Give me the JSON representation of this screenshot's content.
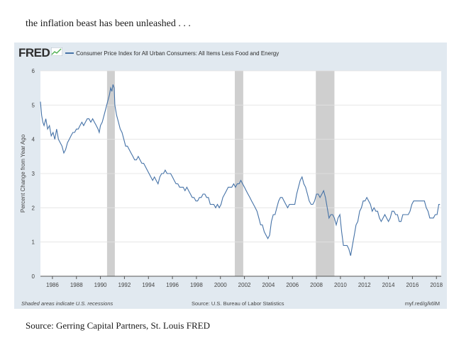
{
  "intro_text": "the inflation beast has been unleashed . . .",
  "source_text": "Source: Gerring Capital Partners, St. Louis FRED",
  "fred": {
    "logo": "FRED",
    "series_title": "Consumer Price Index for All Urban Consumers: All Items Less Food and Energy",
    "footer_left": "Shaded areas indicate U.S. recessions",
    "footer_mid": "Source: U.S. Bureau of Labor Statistics",
    "footer_right": "myf.red/g/k6lM"
  },
  "colors": {
    "line": "#4572a7",
    "recession": "#cfcfcf",
    "plot_bg": "#ffffff",
    "panel_bg": "#e1e9f0"
  },
  "chart_data": {
    "type": "line",
    "title": "Consumer Price Index for All Urban Consumers: All Items Less Food and Energy",
    "xlabel": "",
    "ylabel": "Percent Change from Year Ago",
    "xlim": [
      1985,
      2018.4
    ],
    "ylim": [
      0,
      6
    ],
    "yticks": [
      0,
      1,
      2,
      3,
      4,
      5,
      6
    ],
    "xticks": [
      "1986",
      "1988",
      "1990",
      "1992",
      "1994",
      "1996",
      "1998",
      "2000",
      "2002",
      "2004",
      "2006",
      "2008",
      "2010",
      "2012",
      "2014",
      "2016",
      "2018"
    ],
    "grid": "horizontal",
    "recessions": [
      [
        1990.55,
        1991.2
      ],
      [
        2001.2,
        2001.9
      ],
      [
        2007.95,
        2009.5
      ]
    ],
    "series": [
      {
        "values": [
          [
            1985.0,
            5.1
          ],
          [
            1985.1,
            4.7
          ],
          [
            1985.2,
            4.5
          ],
          [
            1985.3,
            4.4
          ],
          [
            1985.45,
            4.6
          ],
          [
            1985.6,
            4.3
          ],
          [
            1985.75,
            4.4
          ],
          [
            1985.9,
            4.1
          ],
          [
            1986.05,
            4.2
          ],
          [
            1986.2,
            4.0
          ],
          [
            1986.35,
            4.3
          ],
          [
            1986.5,
            4.0
          ],
          [
            1986.65,
            3.9
          ],
          [
            1986.8,
            3.8
          ],
          [
            1986.95,
            3.6
          ],
          [
            1987.1,
            3.7
          ],
          [
            1987.25,
            3.9
          ],
          [
            1987.4,
            4.0
          ],
          [
            1987.55,
            4.1
          ],
          [
            1987.7,
            4.2
          ],
          [
            1987.85,
            4.2
          ],
          [
            1988.0,
            4.3
          ],
          [
            1988.15,
            4.3
          ],
          [
            1988.3,
            4.4
          ],
          [
            1988.45,
            4.5
          ],
          [
            1988.6,
            4.4
          ],
          [
            1988.75,
            4.5
          ],
          [
            1988.9,
            4.6
          ],
          [
            1989.05,
            4.6
          ],
          [
            1989.2,
            4.5
          ],
          [
            1989.35,
            4.6
          ],
          [
            1989.5,
            4.5
          ],
          [
            1989.65,
            4.4
          ],
          [
            1989.8,
            4.3
          ],
          [
            1989.9,
            4.2
          ],
          [
            1990.0,
            4.4
          ],
          [
            1990.15,
            4.5
          ],
          [
            1990.3,
            4.7
          ],
          [
            1990.45,
            4.9
          ],
          [
            1990.6,
            5.1
          ],
          [
            1990.75,
            5.3
          ],
          [
            1990.85,
            5.5
          ],
          [
            1990.95,
            5.4
          ],
          [
            1991.05,
            5.6
          ],
          [
            1991.15,
            5.5
          ],
          [
            1991.2,
            5.0
          ],
          [
            1991.35,
            4.7
          ],
          [
            1991.5,
            4.5
          ],
          [
            1991.65,
            4.3
          ],
          [
            1991.8,
            4.2
          ],
          [
            1991.95,
            4.0
          ],
          [
            1992.1,
            3.8
          ],
          [
            1992.25,
            3.8
          ],
          [
            1992.4,
            3.7
          ],
          [
            1992.55,
            3.6
          ],
          [
            1992.7,
            3.5
          ],
          [
            1992.85,
            3.4
          ],
          [
            1993.0,
            3.4
          ],
          [
            1993.15,
            3.5
          ],
          [
            1993.3,
            3.4
          ],
          [
            1993.45,
            3.3
          ],
          [
            1993.6,
            3.3
          ],
          [
            1993.75,
            3.2
          ],
          [
            1993.9,
            3.1
          ],
          [
            1994.05,
            3.0
          ],
          [
            1994.2,
            2.9
          ],
          [
            1994.35,
            2.8
          ],
          [
            1994.5,
            2.9
          ],
          [
            1994.65,
            2.8
          ],
          [
            1994.8,
            2.7
          ],
          [
            1994.95,
            2.9
          ],
          [
            1995.1,
            3.0
          ],
          [
            1995.25,
            3.0
          ],
          [
            1995.4,
            3.1
          ],
          [
            1995.55,
            3.0
          ],
          [
            1995.7,
            3.0
          ],
          [
            1995.85,
            3.0
          ],
          [
            1996.0,
            2.9
          ],
          [
            1996.15,
            2.8
          ],
          [
            1996.3,
            2.7
          ],
          [
            1996.45,
            2.7
          ],
          [
            1996.6,
            2.6
          ],
          [
            1996.75,
            2.6
          ],
          [
            1996.9,
            2.6
          ],
          [
            1997.05,
            2.5
          ],
          [
            1997.2,
            2.6
          ],
          [
            1997.35,
            2.5
          ],
          [
            1997.5,
            2.4
          ],
          [
            1997.65,
            2.3
          ],
          [
            1997.8,
            2.3
          ],
          [
            1997.95,
            2.2
          ],
          [
            1998.1,
            2.2
          ],
          [
            1998.25,
            2.3
          ],
          [
            1998.4,
            2.3
          ],
          [
            1998.55,
            2.4
          ],
          [
            1998.7,
            2.4
          ],
          [
            1998.85,
            2.3
          ],
          [
            1999.0,
            2.3
          ],
          [
            1999.15,
            2.1
          ],
          [
            1999.3,
            2.1
          ],
          [
            1999.45,
            2.1
          ],
          [
            1999.6,
            2.0
          ],
          [
            1999.75,
            2.1
          ],
          [
            1999.9,
            2.0
          ],
          [
            2000.05,
            2.1
          ],
          [
            2000.2,
            2.3
          ],
          [
            2000.35,
            2.4
          ],
          [
            2000.5,
            2.5
          ],
          [
            2000.65,
            2.6
          ],
          [
            2000.8,
            2.6
          ],
          [
            2000.95,
            2.6
          ],
          [
            2001.1,
            2.7
          ],
          [
            2001.25,
            2.6
          ],
          [
            2001.4,
            2.7
          ],
          [
            2001.55,
            2.7
          ],
          [
            2001.7,
            2.8
          ],
          [
            2001.85,
            2.7
          ],
          [
            2002.0,
            2.6
          ],
          [
            2002.15,
            2.5
          ],
          [
            2002.3,
            2.4
          ],
          [
            2002.45,
            2.3
          ],
          [
            2002.6,
            2.2
          ],
          [
            2002.75,
            2.1
          ],
          [
            2002.9,
            2.0
          ],
          [
            2003.05,
            1.9
          ],
          [
            2003.2,
            1.7
          ],
          [
            2003.35,
            1.5
          ],
          [
            2003.5,
            1.5
          ],
          [
            2003.65,
            1.3
          ],
          [
            2003.8,
            1.2
          ],
          [
            2003.95,
            1.1
          ],
          [
            2004.1,
            1.2
          ],
          [
            2004.25,
            1.6
          ],
          [
            2004.4,
            1.8
          ],
          [
            2004.55,
            1.8
          ],
          [
            2004.7,
            2.0
          ],
          [
            2004.85,
            2.2
          ],
          [
            2005.0,
            2.3
          ],
          [
            2005.15,
            2.3
          ],
          [
            2005.3,
            2.2
          ],
          [
            2005.45,
            2.1
          ],
          [
            2005.6,
            2.0
          ],
          [
            2005.75,
            2.1
          ],
          [
            2005.9,
            2.1
          ],
          [
            2006.05,
            2.1
          ],
          [
            2006.2,
            2.1
          ],
          [
            2006.35,
            2.4
          ],
          [
            2006.5,
            2.6
          ],
          [
            2006.65,
            2.8
          ],
          [
            2006.8,
            2.9
          ],
          [
            2006.95,
            2.7
          ],
          [
            2007.1,
            2.6
          ],
          [
            2007.25,
            2.4
          ],
          [
            2007.4,
            2.2
          ],
          [
            2007.55,
            2.1
          ],
          [
            2007.7,
            2.1
          ],
          [
            2007.85,
            2.2
          ],
          [
            2008.0,
            2.4
          ],
          [
            2008.15,
            2.4
          ],
          [
            2008.3,
            2.3
          ],
          [
            2008.45,
            2.4
          ],
          [
            2008.6,
            2.5
          ],
          [
            2008.75,
            2.3
          ],
          [
            2008.9,
            2.0
          ],
          [
            2009.05,
            1.7
          ],
          [
            2009.2,
            1.8
          ],
          [
            2009.35,
            1.8
          ],
          [
            2009.5,
            1.7
          ],
          [
            2009.65,
            1.5
          ],
          [
            2009.8,
            1.7
          ],
          [
            2009.95,
            1.8
          ],
          [
            2010.1,
            1.3
          ],
          [
            2010.25,
            0.9
          ],
          [
            2010.4,
            0.9
          ],
          [
            2010.55,
            0.9
          ],
          [
            2010.7,
            0.8
          ],
          [
            2010.85,
            0.6
          ],
          [
            2011.0,
            0.9
          ],
          [
            2011.15,
            1.2
          ],
          [
            2011.3,
            1.5
          ],
          [
            2011.45,
            1.6
          ],
          [
            2011.6,
            1.9
          ],
          [
            2011.75,
            2.0
          ],
          [
            2011.9,
            2.2
          ],
          [
            2012.05,
            2.2
          ],
          [
            2012.2,
            2.3
          ],
          [
            2012.35,
            2.2
          ],
          [
            2012.5,
            2.1
          ],
          [
            2012.65,
            1.9
          ],
          [
            2012.8,
            2.0
          ],
          [
            2012.95,
            1.9
          ],
          [
            2013.1,
            1.9
          ],
          [
            2013.25,
            1.7
          ],
          [
            2013.4,
            1.6
          ],
          [
            2013.55,
            1.7
          ],
          [
            2013.7,
            1.8
          ],
          [
            2013.85,
            1.7
          ],
          [
            2014.0,
            1.6
          ],
          [
            2014.15,
            1.7
          ],
          [
            2014.3,
            1.9
          ],
          [
            2014.45,
            1.9
          ],
          [
            2014.6,
            1.8
          ],
          [
            2014.75,
            1.8
          ],
          [
            2014.9,
            1.6
          ],
          [
            2015.05,
            1.6
          ],
          [
            2015.2,
            1.8
          ],
          [
            2015.35,
            1.8
          ],
          [
            2015.5,
            1.8
          ],
          [
            2015.65,
            1.8
          ],
          [
            2015.8,
            1.9
          ],
          [
            2015.95,
            2.1
          ],
          [
            2016.1,
            2.2
          ],
          [
            2016.25,
            2.2
          ],
          [
            2016.4,
            2.2
          ],
          [
            2016.55,
            2.2
          ],
          [
            2016.7,
            2.2
          ],
          [
            2016.85,
            2.2
          ],
          [
            2017.0,
            2.2
          ],
          [
            2017.15,
            2.0
          ],
          [
            2017.3,
            1.9
          ],
          [
            2017.45,
            1.7
          ],
          [
            2017.6,
            1.7
          ],
          [
            2017.75,
            1.7
          ],
          [
            2017.9,
            1.8
          ],
          [
            2018.05,
            1.8
          ],
          [
            2018.2,
            2.1
          ],
          [
            2018.3,
            2.1
          ]
        ]
      }
    ]
  }
}
